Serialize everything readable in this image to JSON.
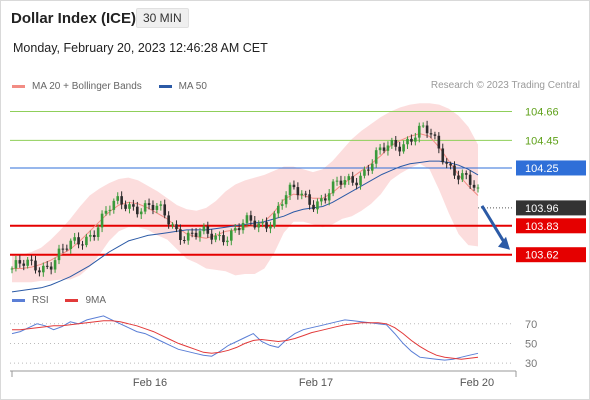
{
  "header": {
    "title": "Dollar Index (ICE)",
    "timeframe": "30 MIN",
    "datetime": "Monday, February 20, 2023 12:46:28 AM CET",
    "credit": "Research © 2023 Trading Central"
  },
  "legend": {
    "items": [
      {
        "label": "MA 20 + Bollinger Bands",
        "color": "#f28c84"
      },
      {
        "label": "MA 50",
        "color": "#2b5aa6"
      }
    ]
  },
  "rsi_legend": {
    "items": [
      {
        "label": "RSI",
        "color": "#5b7fd6"
      },
      {
        "label": "9MA",
        "color": "#e23a3a"
      }
    ]
  },
  "colors": {
    "resistance_green": "#8fcf5a",
    "pivot_blue": "#2f6fd8",
    "support_red": "#e50000",
    "last_price_bg": "#333333",
    "candle_up": "#3a9a3a",
    "candle_down": "#2b2b2b",
    "bollinger_fill": "#fbd7d7",
    "ma20": "#f28c84",
    "ma50": "#2b5aa6",
    "arrow": "#2b5aa6"
  },
  "chart_data": [
    {
      "type": "candlestick",
      "title": "Dollar Index (ICE)",
      "timeframe": "30 MIN",
      "x_ticks": [
        "Feb 16",
        "Feb 17",
        "Feb 20"
      ],
      "ylim": [
        103.4,
        104.78
      ],
      "levels": [
        {
          "value": 104.66,
          "label": "104.66",
          "kind": "resistance"
        },
        {
          "value": 104.45,
          "label": "104.45",
          "kind": "resistance"
        },
        {
          "value": 104.25,
          "label": "104.25",
          "kind": "pivot"
        },
        {
          "value": 103.83,
          "label": "103.83",
          "kind": "support"
        },
        {
          "value": 103.62,
          "label": "103.62",
          "kind": "support"
        }
      ],
      "last_price": {
        "value": 103.96,
        "label": "103.96"
      },
      "forecast": "down",
      "series": [
        {
          "name": "MA 20 + Bollinger Bands",
          "values": [
            103.52,
            103.52,
            103.53,
            103.55,
            103.58,
            103.62,
            103.66,
            103.72,
            103.79,
            103.86,
            103.93,
            103.98,
            104.0,
            103.99,
            103.96,
            103.92,
            103.88,
            103.82,
            103.77,
            103.75,
            103.74,
            103.76,
            103.79,
            103.8,
            103.82,
            103.83,
            103.86,
            103.93,
            104.02,
            104.06,
            104.05,
            104.03,
            104.03,
            104.07,
            104.13,
            104.18,
            104.23,
            104.28,
            104.34,
            104.41,
            104.45,
            104.48,
            104.5,
            104.48,
            104.4,
            104.3,
            104.2,
            104.12,
            104.05
          ]
        },
        {
          "name": "MA 50",
          "values": [
            103.35,
            103.36,
            103.37,
            103.38,
            103.4,
            103.43,
            103.46,
            103.5,
            103.54,
            103.59,
            103.64,
            103.68,
            103.72,
            103.74,
            103.76,
            103.77,
            103.78,
            103.79,
            103.8,
            103.8,
            103.8,
            103.81,
            103.82,
            103.83,
            103.84,
            103.85,
            103.86,
            103.88,
            103.9,
            103.93,
            103.95,
            103.96,
            103.97,
            104.0,
            104.04,
            104.08,
            104.12,
            104.16,
            104.2,
            104.23,
            104.26,
            104.28,
            104.29,
            104.3,
            104.3,
            104.29,
            104.27,
            104.24,
            104.2
          ]
        }
      ],
      "bollinger_upper": [
        103.62,
        103.62,
        103.64,
        103.67,
        103.73,
        103.8,
        103.88,
        103.97,
        104.05,
        104.1,
        104.14,
        104.17,
        104.18,
        104.16,
        104.12,
        104.08,
        104.03,
        103.98,
        103.95,
        103.94,
        103.96,
        104.01,
        104.08,
        104.13,
        104.16,
        104.18,
        104.2,
        104.23,
        104.26,
        104.26,
        104.24,
        104.22,
        104.24,
        104.3,
        104.38,
        104.46,
        104.52,
        104.57,
        104.62,
        104.66,
        104.69,
        104.71,
        104.72,
        104.72,
        104.71,
        104.68,
        104.63,
        104.55,
        104.42
      ],
      "bollinger_lower": [
        103.42,
        103.42,
        103.42,
        103.43,
        103.43,
        103.44,
        103.44,
        103.47,
        103.53,
        103.62,
        103.72,
        103.79,
        103.82,
        103.82,
        103.8,
        103.76,
        103.73,
        103.66,
        103.59,
        103.56,
        103.52,
        103.51,
        103.5,
        103.47,
        103.48,
        103.48,
        103.52,
        103.63,
        103.78,
        103.86,
        103.86,
        103.84,
        103.82,
        103.84,
        103.88,
        103.9,
        103.94,
        103.99,
        104.06,
        104.16,
        104.21,
        104.25,
        104.28,
        104.24,
        104.09,
        103.92,
        103.77,
        103.69,
        103.68
      ]
    },
    {
      "type": "line",
      "title": "RSI",
      "ylim": [
        25,
        82
      ],
      "y_ticks": [
        70,
        50,
        30
      ],
      "series": [
        {
          "name": "RSI",
          "values": [
            60,
            62,
            66,
            70,
            68,
            64,
            67,
            72,
            70,
            74,
            76,
            78,
            74,
            70,
            66,
            62,
            60,
            56,
            52,
            48,
            44,
            42,
            40,
            38,
            37,
            42,
            48,
            52,
            56,
            60,
            52,
            48,
            46,
            54,
            60,
            64,
            66,
            68,
            70,
            72,
            74,
            73,
            72,
            71,
            70,
            69,
            60,
            50,
            42,
            36,
            35,
            34,
            33,
            34,
            36,
            38,
            40
          ]
        },
        {
          "name": "9MA",
          "values": [
            64,
            64,
            65,
            66,
            67,
            68,
            68,
            69,
            70,
            71,
            72,
            73,
            73,
            72,
            70,
            68,
            65,
            62,
            58,
            54,
            50,
            47,
            44,
            41,
            40,
            41,
            43,
            46,
            50,
            53,
            54,
            53,
            52,
            53,
            55,
            58,
            61,
            63,
            65,
            67,
            69,
            70,
            71,
            71,
            71,
            70,
            66,
            60,
            53,
            47,
            42,
            38,
            36,
            35,
            34,
            35,
            36
          ]
        }
      ]
    }
  ]
}
